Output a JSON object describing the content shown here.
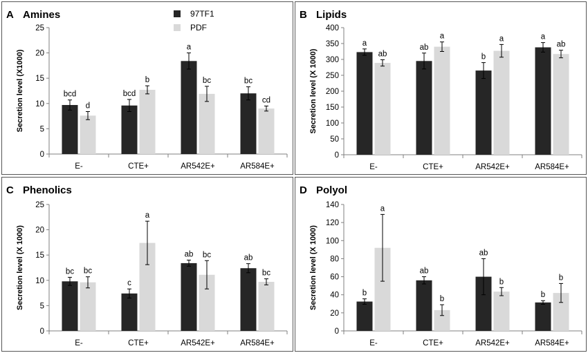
{
  "legend": [
    "97TF1",
    "PDF"
  ],
  "colors": {
    "97TF1": "#262626",
    "PDF": "#d9d9d9"
  },
  "chart_data": [
    {
      "type": "bar",
      "panel_letter": "A",
      "title": "Amines",
      "ylabel": "Secretion level (X1000)",
      "ylim": [
        0,
        25
      ],
      "yticks": [
        "0",
        "5",
        "10",
        "15",
        "20",
        "25"
      ],
      "categories": [
        "E-",
        "CTE+",
        "AR542E+",
        "AR584E+"
      ],
      "series": [
        {
          "name": "97TF1",
          "values": [
            9.7,
            9.6,
            18.4,
            12.0
          ],
          "errors": [
            1.0,
            1.2,
            1.6,
            1.3
          ],
          "labels": [
            "bcd",
            "bcd",
            "a",
            "bc"
          ]
        },
        {
          "name": "PDF",
          "values": [
            7.6,
            12.7,
            11.9,
            9.0
          ],
          "errors": [
            0.8,
            0.8,
            1.5,
            0.5
          ],
          "labels": [
            "d",
            "b",
            "bc",
            "cd"
          ]
        }
      ]
    },
    {
      "type": "bar",
      "panel_letter": "B",
      "title": "Lipids",
      "ylabel": "Secretion level (X 1000)",
      "ylim": [
        0,
        400
      ],
      "yticks": [
        "0",
        "50",
        "100",
        "150",
        "200",
        "250",
        "300",
        "350",
        "400"
      ],
      "categories": [
        "E-",
        "CTE+",
        "AR542E+",
        "AR584E+"
      ],
      "series": [
        {
          "name": "97TF1",
          "values": [
            323,
            295,
            265,
            338
          ],
          "errors": [
            10,
            25,
            25,
            15
          ],
          "labels": [
            "a",
            "ab",
            "b",
            "a"
          ]
        },
        {
          "name": "PDF",
          "values": [
            289,
            340,
            327,
            317
          ],
          "errors": [
            10,
            15,
            20,
            12
          ],
          "labels": [
            "ab",
            "a",
            "a",
            "ab"
          ]
        }
      ]
    },
    {
      "type": "bar",
      "panel_letter": "C",
      "title": "Phenolics",
      "ylabel": "Secretion level (X 1000)",
      "ylim": [
        0,
        25
      ],
      "yticks": [
        "0",
        "5",
        "10",
        "15",
        "20",
        "25"
      ],
      "categories": [
        "E-",
        "CTE+",
        "AR542E+",
        "AR584E+"
      ],
      "series": [
        {
          "name": "97TF1",
          "values": [
            9.8,
            7.4,
            13.4,
            12.4
          ],
          "errors": [
            0.8,
            0.9,
            0.6,
            0.9
          ],
          "labels": [
            "bc",
            "c",
            "ab",
            "ab"
          ]
        },
        {
          "name": "PDF",
          "values": [
            9.6,
            17.4,
            11.1,
            9.7
          ],
          "errors": [
            1.1,
            4.3,
            2.8,
            0.6
          ],
          "labels": [
            "bc",
            "a",
            "bc",
            "bc"
          ]
        }
      ]
    },
    {
      "type": "bar",
      "panel_letter": "D",
      "title": "Polyol",
      "ylabel": "Secretion level (X 1000)",
      "ylim": [
        0,
        140
      ],
      "yticks": [
        "0",
        "20",
        "40",
        "60",
        "80",
        "100",
        "120",
        "140"
      ],
      "categories": [
        "E-",
        "CTE+",
        "AR542E+",
        "AR584E+"
      ],
      "series": [
        {
          "name": "97TF1",
          "values": [
            32.5,
            56.0,
            60.0,
            31.5
          ],
          "errors": [
            3.0,
            4.0,
            20.0,
            2.0
          ],
          "labels": [
            "b",
            "ab",
            "ab",
            "b"
          ]
        },
        {
          "name": "PDF",
          "values": [
            92.0,
            23.0,
            43.5,
            42.0
          ],
          "errors": [
            37.0,
            6.0,
            4.5,
            10.5
          ],
          "labels": [
            "a",
            "b",
            "b",
            "b"
          ]
        }
      ]
    }
  ]
}
